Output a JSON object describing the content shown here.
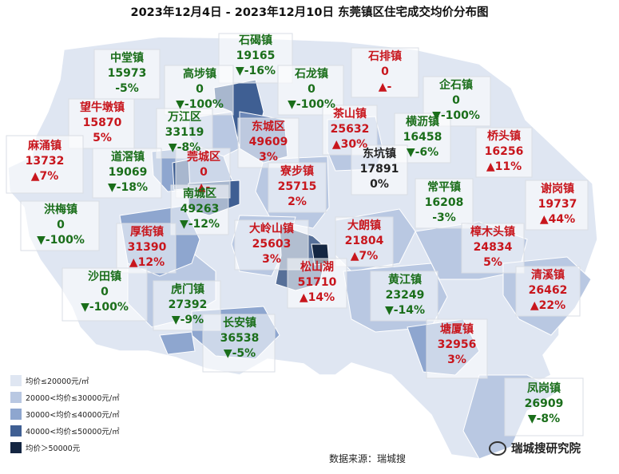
{
  "title": "2023年12月4日 - 2023年12月10日 东莞镇区住宅成交均价分布图",
  "source": "数据来源：瑞城搜",
  "brand": "瑞城搜研究院",
  "colors": {
    "up": "#c8161d",
    "down": "#1a6e1a",
    "flat": "#222222",
    "tier1": "#dfe6f2",
    "tier2": "#b9c8e2",
    "tier3": "#8ea6cf",
    "tier4": "#3f5f93",
    "tier5": "#142642"
  },
  "legend": [
    {
      "label": "均价≤20000元/㎡",
      "color": "#dfe6f2"
    },
    {
      "label": "20000<均价≤30000元/㎡",
      "color": "#b9c8e2"
    },
    {
      "label": "30000<均价≤40000元/㎡",
      "color": "#8ea6cf"
    },
    {
      "label": "40000<均价≤50000元/㎡",
      "color": "#3f5f93"
    },
    {
      "label": "均价＞50000元",
      "color": "#142642"
    }
  ],
  "towns": [
    {
      "name": "石碣镇",
      "price": "19165",
      "change": "▼-16%",
      "trend": "down"
    },
    {
      "name": "中堂镇",
      "price": "15973",
      "change": "-5%",
      "trend": "down"
    },
    {
      "name": "高埗镇",
      "price": "0",
      "change": "▼-100%",
      "trend": "down"
    },
    {
      "name": "石龙镇",
      "price": "0",
      "change": "▼-100%",
      "trend": "down"
    },
    {
      "name": "石排镇",
      "price": "0",
      "change": "▲-",
      "trend": "up"
    },
    {
      "name": "企石镇",
      "price": "0",
      "change": "▼-100%",
      "trend": "down"
    },
    {
      "name": "望牛墩镇",
      "price": "15870",
      "change": "5%",
      "trend": "up"
    },
    {
      "name": "万江区",
      "price": "33119",
      "change": "▼-8%",
      "trend": "down"
    },
    {
      "name": "东城区",
      "price": "49609",
      "change": "3%",
      "trend": "up"
    },
    {
      "name": "茶山镇",
      "price": "25632",
      "change": "▲30%",
      "trend": "up"
    },
    {
      "name": "横沥镇",
      "price": "16458",
      "change": "▼-6%",
      "trend": "down"
    },
    {
      "name": "桥头镇",
      "price": "16256",
      "change": "▲11%",
      "trend": "up"
    },
    {
      "name": "麻涌镇",
      "price": "13732",
      "change": "▲7%",
      "trend": "up"
    },
    {
      "name": "道滘镇",
      "price": "19069",
      "change": "▼-18%",
      "trend": "down"
    },
    {
      "name": "莞城区",
      "price": "0",
      "change": "▲-",
      "trend": "up"
    },
    {
      "name": "寮步镇",
      "price": "25715",
      "change": "2%",
      "trend": "up"
    },
    {
      "name": "东坑镇",
      "price": "17891",
      "change": "0%",
      "trend": "flat"
    },
    {
      "name": "常平镇",
      "price": "16208",
      "change": "-3%",
      "trend": "down"
    },
    {
      "name": "谢岗镇",
      "price": "19737",
      "change": "▲44%",
      "trend": "up"
    },
    {
      "name": "洪梅镇",
      "price": "0",
      "change": "▼-100%",
      "trend": "down"
    },
    {
      "name": "南城区",
      "price": "49263",
      "change": "▼-12%",
      "trend": "down"
    },
    {
      "name": "厚街镇",
      "price": "31390",
      "change": "▲12%",
      "trend": "up"
    },
    {
      "name": "大岭山镇",
      "price": "25603",
      "change": "3%",
      "trend": "up"
    },
    {
      "name": "大朗镇",
      "price": "21804",
      "change": "▲7%",
      "trend": "up"
    },
    {
      "name": "樟木头镇",
      "price": "24834",
      "change": "5%",
      "trend": "up"
    },
    {
      "name": "沙田镇",
      "price": "0",
      "change": "▼-100%",
      "trend": "down"
    },
    {
      "name": "松山湖",
      "price": "51710",
      "change": "▲14%",
      "trend": "up"
    },
    {
      "name": "虎门镇",
      "price": "27392",
      "change": "▼-9%",
      "trend": "down"
    },
    {
      "name": "黄江镇",
      "price": "23249",
      "change": "▼-14%",
      "trend": "down"
    },
    {
      "name": "清溪镇",
      "price": "26462",
      "change": "▲22%",
      "trend": "up"
    },
    {
      "name": "长安镇",
      "price": "36538",
      "change": "▼-5%",
      "trend": "down"
    },
    {
      "name": "塘厦镇",
      "price": "32956",
      "change": "3%",
      "trend": "up"
    },
    {
      "name": "凤岗镇",
      "price": "26909",
      "change": "▼-8%",
      "trend": "down"
    }
  ]
}
